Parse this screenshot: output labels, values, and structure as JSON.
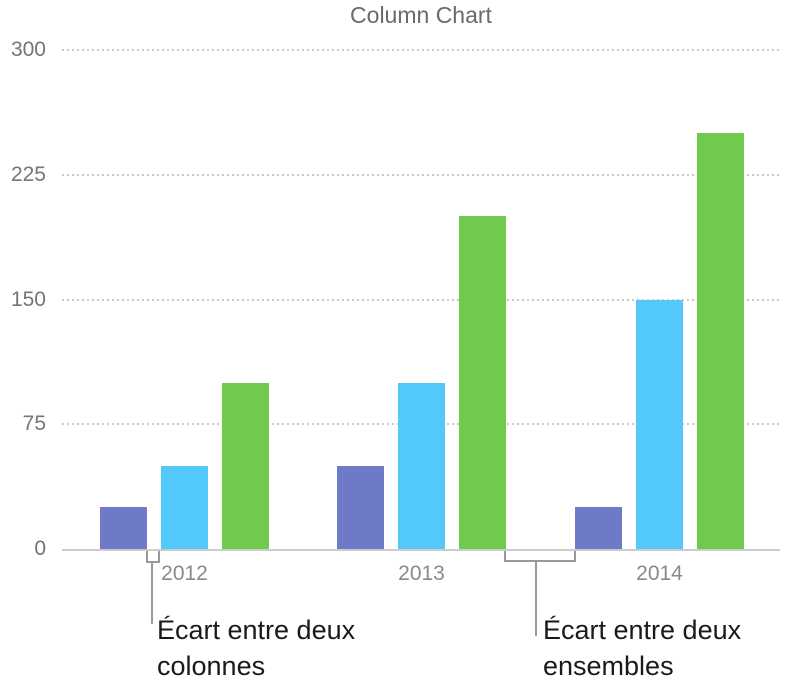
{
  "chart_data": {
    "type": "bar",
    "title": "Column Chart",
    "categories": [
      "2012",
      "2013",
      "2014"
    ],
    "series": [
      {
        "color": "#6e7ac8",
        "values": [
          25,
          50,
          25
        ]
      },
      {
        "color": "#52c9fa",
        "values": [
          50,
          100,
          150
        ]
      },
      {
        "color": "#6fca4d",
        "values": [
          100,
          200,
          250
        ]
      }
    ],
    "ylim": [
      0,
      300
    ],
    "y_ticks": [
      0,
      75,
      150,
      225,
      300
    ],
    "grid": "horizontal-dotted",
    "legend": "none"
  },
  "annotations": [
    {
      "target": "gap-between-two-columns",
      "lines": [
        "Écart entre deux",
        "colonnes"
      ]
    },
    {
      "target": "gap-between-two-sets",
      "lines": [
        "Écart entre deux",
        "ensembles"
      ]
    }
  ],
  "colors": {
    "axis_line": "#cccccc",
    "gridline": "#c9c9c9",
    "bracket": "#9a9a9a",
    "title_text": "#6a6a6a",
    "y_tick_text": "#757575",
    "x_tick_text": "#8a8a8a",
    "annotation_text": "#1a1a1a"
  }
}
